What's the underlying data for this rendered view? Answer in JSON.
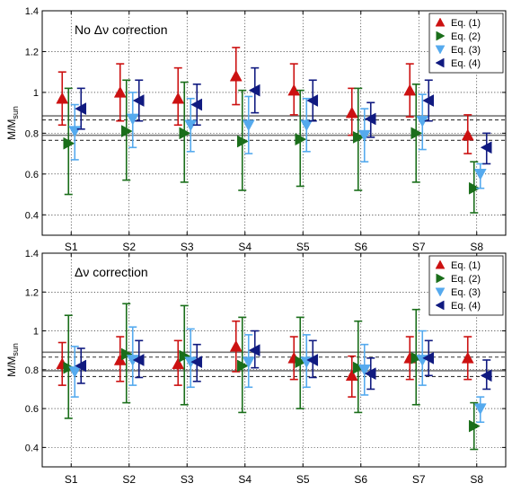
{
  "chart_data": [
    {
      "type": "scatter",
      "title": "",
      "annotation": "No Δν correction",
      "xlabel": "",
      "ylabel": "M/M",
      "ylabel_sub": "sun",
      "ylim": [
        0.3,
        1.4
      ],
      "yticks": [
        0.4,
        0.6,
        0.8,
        1,
        1.2,
        1.4
      ],
      "ytick_labels": [
        "0.4",
        "0.6",
        "0.8",
        "1",
        "1.2",
        "1.4"
      ],
      "categories": [
        "S1",
        "S2",
        "S3",
        "S4",
        "S5",
        "S6",
        "S7",
        "S8"
      ],
      "grid": true,
      "legend_position": "top-right",
      "hlines": [
        {
          "y": 0.885,
          "style": "solid"
        },
        {
          "y": 0.865,
          "style": "dashed"
        },
        {
          "y": 0.79,
          "style": "solid"
        },
        {
          "y": 0.765,
          "style": "dashed"
        }
      ],
      "series": [
        {
          "name": "Eq. (1)",
          "color": "#cc1111",
          "marker": "triangle-up",
          "values": [
            0.97,
            1.0,
            0.97,
            1.08,
            1.01,
            0.9,
            1.01,
            0.79
          ],
          "lower": [
            0.84,
            0.86,
            0.84,
            0.94,
            0.89,
            0.79,
            0.88,
            0.7
          ],
          "upper": [
            1.1,
            1.14,
            1.12,
            1.22,
            1.14,
            1.02,
            1.14,
            0.89
          ]
        },
        {
          "name": "Eq. (2)",
          "color": "#1a6e1a",
          "marker": "triangle-right",
          "values": [
            0.75,
            0.81,
            0.8,
            0.76,
            0.77,
            0.78,
            0.8,
            0.53
          ],
          "lower": [
            0.5,
            0.57,
            0.56,
            0.52,
            0.54,
            0.52,
            0.56,
            0.41
          ],
          "upper": [
            1.02,
            1.06,
            1.05,
            1.01,
            1.01,
            1.02,
            1.04,
            0.66
          ]
        },
        {
          "name": "Eq. (3)",
          "color": "#55aaee",
          "marker": "triangle-down",
          "values": [
            0.81,
            0.87,
            0.84,
            0.84,
            0.84,
            0.79,
            0.86,
            0.6
          ],
          "lower": [
            0.67,
            0.73,
            0.71,
            0.7,
            0.71,
            0.66,
            0.72,
            0.53
          ],
          "upper": [
            0.94,
            1.0,
            0.97,
            0.98,
            0.97,
            0.92,
            0.99,
            0.65
          ]
        },
        {
          "name": "Eq. (4)",
          "color": "#101a80",
          "marker": "triangle-left",
          "values": [
            0.92,
            0.96,
            0.94,
            1.01,
            0.96,
            0.87,
            0.96,
            0.73
          ],
          "lower": [
            0.82,
            0.86,
            0.84,
            0.9,
            0.86,
            0.78,
            0.86,
            0.65
          ],
          "upper": [
            1.02,
            1.06,
            1.04,
            1.12,
            1.06,
            0.95,
            1.06,
            0.8
          ]
        }
      ]
    },
    {
      "type": "scatter",
      "title": "",
      "annotation": "Δν correction",
      "xlabel": "",
      "ylabel": "M/M",
      "ylabel_sub": "sun",
      "ylim": [
        0.3,
        1.4
      ],
      "yticks": [
        0.4,
        0.6,
        0.8,
        1,
        1.2,
        1.4
      ],
      "ytick_labels": [
        "0.4",
        "0.6",
        "0.8",
        "1",
        "1.2",
        "1.4"
      ],
      "categories": [
        "S1",
        "S2",
        "S3",
        "S4",
        "S5",
        "S6",
        "S7",
        "S8"
      ],
      "grid": true,
      "legend_position": "top-right",
      "hlines": [
        {
          "y": 0.89,
          "style": "solid"
        },
        {
          "y": 0.865,
          "style": "dashed"
        },
        {
          "y": 0.795,
          "style": "solid"
        },
        {
          "y": 0.765,
          "style": "dashed"
        }
      ],
      "series": [
        {
          "name": "Eq. (1)",
          "color": "#cc1111",
          "marker": "triangle-up",
          "values": [
            0.83,
            0.85,
            0.83,
            0.92,
            0.86,
            0.77,
            0.86,
            0.86
          ],
          "lower": [
            0.72,
            0.74,
            0.72,
            0.79,
            0.75,
            0.66,
            0.75,
            0.75
          ],
          "upper": [
            0.94,
            0.97,
            0.95,
            1.05,
            0.97,
            0.87,
            0.97,
            0.97
          ]
        },
        {
          "name": "Eq. (2)",
          "color": "#1a6e1a",
          "marker": "triangle-right",
          "values": [
            0.81,
            0.88,
            0.87,
            0.82,
            0.84,
            0.81,
            0.86,
            0.51
          ],
          "lower": [
            0.55,
            0.63,
            0.62,
            0.58,
            0.6,
            0.58,
            0.62,
            0.39
          ],
          "upper": [
            1.08,
            1.14,
            1.13,
            1.07,
            1.07,
            1.05,
            1.11,
            0.63
          ]
        },
        {
          "name": "Eq. (3)",
          "color": "#55aaee",
          "marker": "triangle-down",
          "values": [
            0.79,
            0.85,
            0.84,
            0.84,
            0.84,
            0.8,
            0.85,
            0.6
          ],
          "lower": [
            0.66,
            0.72,
            0.71,
            0.71,
            0.71,
            0.67,
            0.72,
            0.53
          ],
          "upper": [
            0.92,
            1.02,
            1.01,
            0.98,
            0.98,
            0.93,
            1.0,
            0.66
          ]
        },
        {
          "name": "Eq. (4)",
          "color": "#101a80",
          "marker": "triangle-left",
          "values": [
            0.82,
            0.85,
            0.84,
            0.9,
            0.85,
            0.78,
            0.86,
            0.77
          ],
          "lower": [
            0.73,
            0.76,
            0.74,
            0.81,
            0.76,
            0.7,
            0.77,
            0.7
          ],
          "upper": [
            0.91,
            0.95,
            0.93,
            1.0,
            0.95,
            0.86,
            0.95,
            0.85
          ]
        }
      ]
    }
  ]
}
